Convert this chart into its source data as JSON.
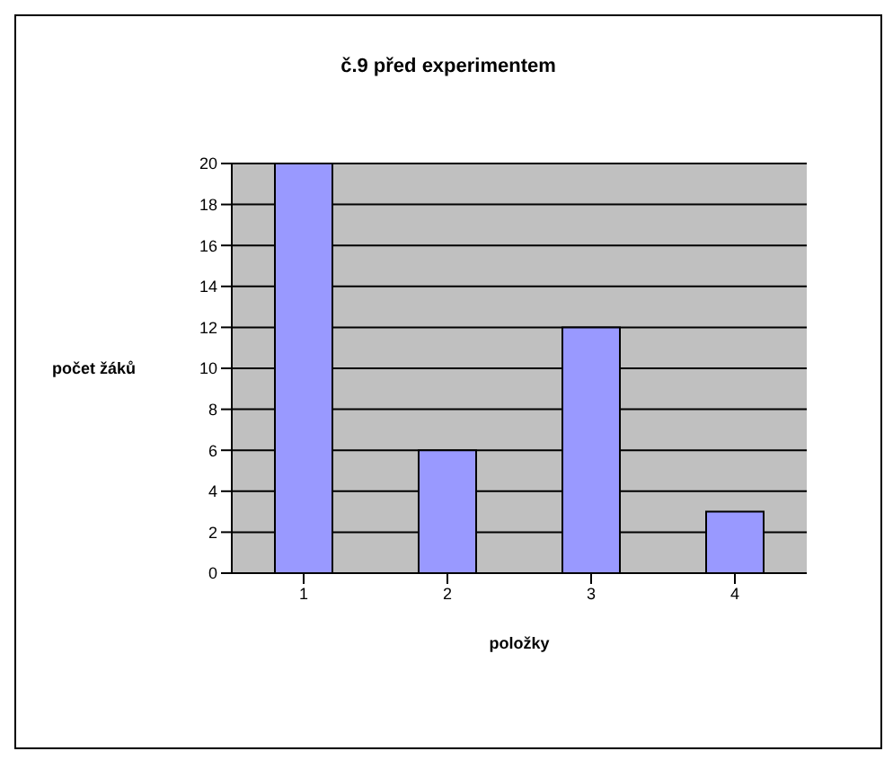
{
  "chart_data": {
    "type": "bar",
    "title": "č.9 před experimentem",
    "xlabel": "položky",
    "ylabel": "počet žáků",
    "categories": [
      "1",
      "2",
      "3",
      "4"
    ],
    "values": [
      20,
      6,
      12,
      3
    ],
    "color": "#9999ff",
    "ylim": [
      0,
      20
    ],
    "yticks": [
      0,
      2,
      4,
      6,
      8,
      10,
      12,
      14,
      16,
      18,
      20
    ],
    "grid": "y"
  }
}
